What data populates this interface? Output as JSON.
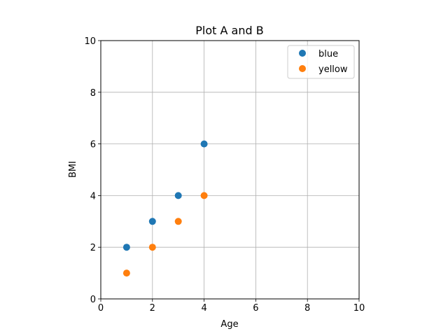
{
  "chart_data": {
    "type": "scatter",
    "title": "Plot A and B",
    "xlabel": "Age",
    "ylabel": "BMI",
    "xlim": [
      0,
      10
    ],
    "ylim": [
      0,
      10
    ],
    "xticks": [
      "0",
      "2",
      "4",
      "6",
      "8",
      "10"
    ],
    "yticks": [
      "0",
      "2",
      "4",
      "6",
      "8",
      "10"
    ],
    "grid": true,
    "legend_position": "top-right",
    "series": [
      {
        "name": "blue",
        "color": "#1f77b4",
        "points": [
          [
            1,
            2
          ],
          [
            2,
            3
          ],
          [
            3,
            4
          ],
          [
            4,
            6
          ]
        ]
      },
      {
        "name": "yellow",
        "color": "#ff7f0e",
        "points": [
          [
            1,
            1
          ],
          [
            2,
            2
          ],
          [
            3,
            3
          ],
          [
            4,
            4
          ]
        ]
      }
    ]
  }
}
